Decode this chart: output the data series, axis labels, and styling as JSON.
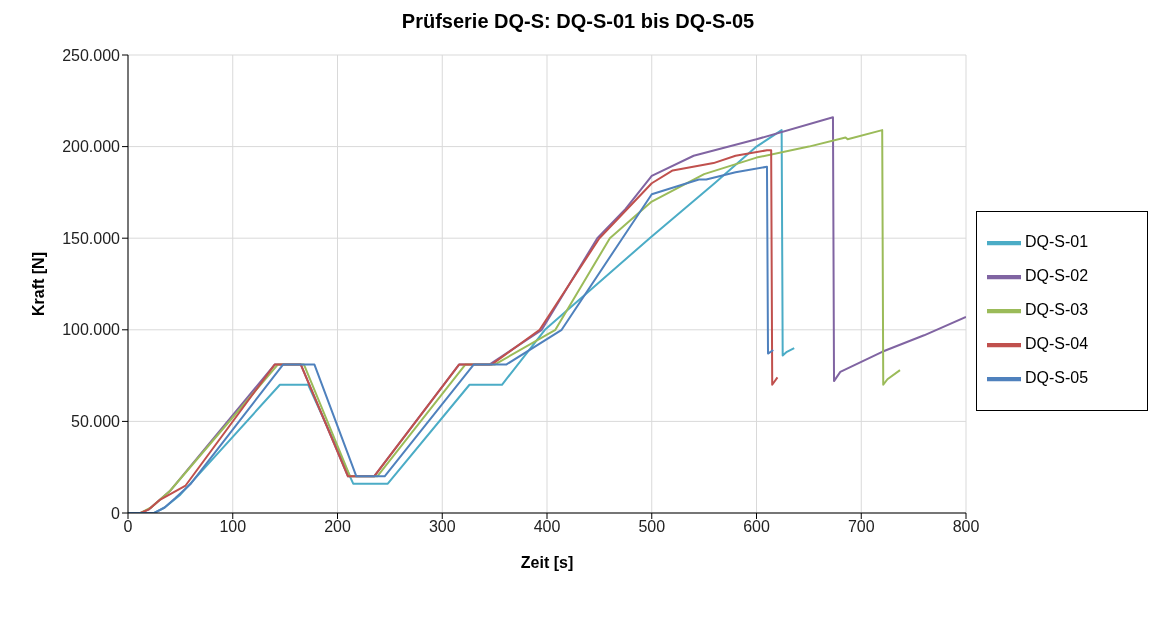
{
  "chart_data": {
    "type": "line",
    "title": "Prüfserie DQ-S: DQ-S-01 bis DQ-S-05",
    "xlabel": "Zeit [s]",
    "ylabel": "Kraft [N]",
    "xlim": [
      0,
      800
    ],
    "xticks": [
      0,
      100,
      200,
      300,
      400,
      500,
      600,
      700,
      800
    ],
    "ylim": [
      0,
      250000
    ],
    "yticks": [
      0,
      {
        "value": 50000,
        "label": "50.000"
      },
      {
        "value": 100000,
        "label": "100.000"
      },
      {
        "value": 150000,
        "label": "150.000"
      },
      {
        "value": 200000,
        "label": "200.000"
      },
      {
        "value": 250000,
        "label": "250.000"
      }
    ],
    "grid": true,
    "legend": "right",
    "marker": "none",
    "line_style": "solid",
    "series": [
      {
        "name": "DQ-S-01",
        "color": "#4bacc6",
        "x": [
          0,
          25,
          35,
          50,
          145,
          172,
          215,
          248,
          326,
          357,
          398,
          498,
          560,
          600,
          624,
          625,
          629,
          636
        ],
        "values": [
          0,
          0,
          3000,
          10000,
          70000,
          70000,
          16000,
          16000,
          70000,
          70000,
          100000,
          150000,
          180000,
          200000,
          209000,
          86000,
          88000,
          90000
        ]
      },
      {
        "name": "DQ-S-02",
        "color": "#8064a2",
        "x": [
          0,
          12,
          20,
          40,
          140,
          165,
          210,
          235,
          316,
          345,
          395,
          448,
          475,
          500,
          540,
          600,
          673,
          674,
          680,
          720,
          760,
          800
        ],
        "values": [
          0,
          0,
          2000,
          12000,
          81000,
          81000,
          20000,
          20000,
          81000,
          81000,
          100000,
          150000,
          166000,
          184000,
          195000,
          204000,
          216000,
          72000,
          77000,
          88000,
          97000,
          107000
        ]
      },
      {
        "name": "DQ-S-03",
        "color": "#9bbb59",
        "x": [
          0,
          12,
          22,
          40,
          143,
          168,
          212,
          238,
          322,
          350,
          408,
          460,
          500,
          550,
          600,
          650,
          685,
          687,
          720,
          721,
          725,
          737
        ],
        "values": [
          0,
          0,
          3000,
          12000,
          81000,
          81000,
          20000,
          20000,
          81000,
          81000,
          100000,
          150000,
          170000,
          185000,
          194000,
          200000,
          205000,
          204000,
          209000,
          70000,
          73000,
          78000
        ]
      },
      {
        "name": "DQ-S-04",
        "color": "#c0504d",
        "x": [
          0,
          12,
          20,
          30,
          55,
          140,
          165,
          210,
          235,
          316,
          347,
          393,
          450,
          500,
          520,
          559,
          580,
          610,
          614,
          615,
          620
        ],
        "values": [
          0,
          0,
          2000,
          7000,
          15000,
          81000,
          81000,
          20000,
          20000,
          81000,
          81000,
          100000,
          150000,
          180000,
          187000,
          191000,
          195000,
          198000,
          198000,
          70000,
          74000
        ]
      },
      {
        "name": "DQ-S-05",
        "color": "#4f81bd",
        "x": [
          0,
          25,
          35,
          45,
          60,
          148,
          178,
          218,
          245,
          330,
          361,
          414,
          472,
          500,
          545,
          552,
          580,
          610,
          611,
          616
        ],
        "values": [
          0,
          0,
          3000,
          8000,
          16000,
          81000,
          81000,
          20000,
          20000,
          81000,
          81000,
          100000,
          150000,
          174000,
          182000,
          182000,
          186000,
          189000,
          87000,
          89000
        ]
      }
    ]
  }
}
